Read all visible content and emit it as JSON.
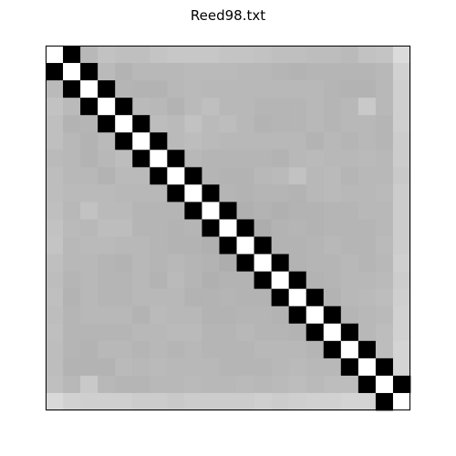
{
  "chart_data": {
    "type": "heatmap",
    "title": "Reed98.txt",
    "rows": 21,
    "cols": 21,
    "colormap": "gray",
    "axes_ticks": false,
    "colors": {
      "border": "#000000",
      "background": "#ffffff"
    },
    "values": [
      [
        1.0,
        0.0,
        0.72,
        0.76,
        0.75,
        0.75,
        0.77,
        0.78,
        0.78,
        0.78,
        0.77,
        0.77,
        0.76,
        0.75,
        0.75,
        0.74,
        0.74,
        0.73,
        0.76,
        0.77,
        0.86
      ],
      [
        0.0,
        1.0,
        0.0,
        0.73,
        0.7,
        0.72,
        0.72,
        0.72,
        0.73,
        0.73,
        0.73,
        0.72,
        0.72,
        0.71,
        0.7,
        0.71,
        0.71,
        0.71,
        0.71,
        0.72,
        0.82
      ],
      [
        0.73,
        0.0,
        1.0,
        0.0,
        0.71,
        0.7,
        0.7,
        0.72,
        0.73,
        0.72,
        0.72,
        0.72,
        0.72,
        0.72,
        0.72,
        0.72,
        0.71,
        0.7,
        0.7,
        0.72,
        0.81
      ],
      [
        0.76,
        0.73,
        0.0,
        1.0,
        0.0,
        0.73,
        0.72,
        0.7,
        0.73,
        0.75,
        0.72,
        0.72,
        0.71,
        0.71,
        0.71,
        0.72,
        0.71,
        0.72,
        0.79,
        0.72,
        0.81
      ],
      [
        0.75,
        0.7,
        0.71,
        0.0,
        1.0,
        0.0,
        0.74,
        0.73,
        0.76,
        0.73,
        0.74,
        0.72,
        0.7,
        0.71,
        0.71,
        0.72,
        0.71,
        0.72,
        0.72,
        0.71,
        0.81
      ],
      [
        0.75,
        0.72,
        0.7,
        0.73,
        0.0,
        1.0,
        0.0,
        0.73,
        0.74,
        0.73,
        0.72,
        0.72,
        0.72,
        0.72,
        0.72,
        0.7,
        0.72,
        0.71,
        0.72,
        0.71,
        0.8
      ],
      [
        0.73,
        0.72,
        0.7,
        0.72,
        0.74,
        0.0,
        1.0,
        0.0,
        0.72,
        0.71,
        0.71,
        0.71,
        0.71,
        0.7,
        0.72,
        0.73,
        0.72,
        0.72,
        0.73,
        0.72,
        0.8
      ],
      [
        0.74,
        0.72,
        0.72,
        0.7,
        0.73,
        0.73,
        0.0,
        1.0,
        0.0,
        0.71,
        0.7,
        0.7,
        0.72,
        0.73,
        0.76,
        0.72,
        0.73,
        0.71,
        0.72,
        0.72,
        0.79
      ],
      [
        0.74,
        0.73,
        0.73,
        0.73,
        0.72,
        0.72,
        0.72,
        0.0,
        1.0,
        0.0,
        0.71,
        0.7,
        0.71,
        0.71,
        0.7,
        0.72,
        0.73,
        0.72,
        0.72,
        0.73,
        0.8
      ],
      [
        0.75,
        0.72,
        0.76,
        0.73,
        0.73,
        0.71,
        0.71,
        0.71,
        0.0,
        1.0,
        0.0,
        0.69,
        0.7,
        0.69,
        0.7,
        0.7,
        0.71,
        0.71,
        0.72,
        0.72,
        0.8
      ],
      [
        0.76,
        0.73,
        0.72,
        0.74,
        0.74,
        0.71,
        0.71,
        0.7,
        0.71,
        0.0,
        1.0,
        0.0,
        0.68,
        0.7,
        0.71,
        0.7,
        0.71,
        0.71,
        0.71,
        0.72,
        0.8
      ],
      [
        0.77,
        0.72,
        0.73,
        0.73,
        0.72,
        0.72,
        0.71,
        0.7,
        0.7,
        0.69,
        0.0,
        1.0,
        0.0,
        0.7,
        0.7,
        0.71,
        0.72,
        0.71,
        0.71,
        0.73,
        0.8
      ],
      [
        0.75,
        0.72,
        0.72,
        0.71,
        0.7,
        0.72,
        0.71,
        0.72,
        0.71,
        0.7,
        0.68,
        0.0,
        1.0,
        0.0,
        0.7,
        0.71,
        0.71,
        0.72,
        0.71,
        0.72,
        0.81
      ],
      [
        0.74,
        0.71,
        0.72,
        0.71,
        0.71,
        0.72,
        0.7,
        0.73,
        0.71,
        0.69,
        0.7,
        0.7,
        0.0,
        1.0,
        0.0,
        0.7,
        0.71,
        0.72,
        0.72,
        0.73,
        0.8
      ],
      [
        0.75,
        0.7,
        0.72,
        0.71,
        0.71,
        0.72,
        0.72,
        0.72,
        0.7,
        0.7,
        0.71,
        0.7,
        0.7,
        0.0,
        1.0,
        0.0,
        0.7,
        0.72,
        0.73,
        0.74,
        0.81
      ],
      [
        0.74,
        0.71,
        0.72,
        0.72,
        0.72,
        0.7,
        0.73,
        0.72,
        0.72,
        0.7,
        0.7,
        0.71,
        0.71,
        0.7,
        0.0,
        1.0,
        0.0,
        0.71,
        0.72,
        0.73,
        0.82
      ],
      [
        0.75,
        0.71,
        0.71,
        0.71,
        0.71,
        0.72,
        0.72,
        0.73,
        0.73,
        0.71,
        0.71,
        0.72,
        0.71,
        0.71,
        0.7,
        0.0,
        1.0,
        0.0,
        0.72,
        0.74,
        0.82
      ],
      [
        0.74,
        0.71,
        0.7,
        0.72,
        0.72,
        0.71,
        0.72,
        0.71,
        0.72,
        0.71,
        0.71,
        0.71,
        0.72,
        0.72,
        0.72,
        0.71,
        0.0,
        1.0,
        0.0,
        0.74,
        0.83
      ],
      [
        0.74,
        0.7,
        0.7,
        0.7,
        0.73,
        0.72,
        0.73,
        0.72,
        0.72,
        0.72,
        0.71,
        0.71,
        0.71,
        0.72,
        0.73,
        0.72,
        0.72,
        0.0,
        1.0,
        0.0,
        0.83
      ],
      [
        0.75,
        0.72,
        0.79,
        0.72,
        0.71,
        0.71,
        0.72,
        0.72,
        0.73,
        0.72,
        0.72,
        0.73,
        0.72,
        0.73,
        0.74,
        0.73,
        0.74,
        0.74,
        0.0,
        1.0,
        0.0
      ],
      [
        0.85,
        0.82,
        0.81,
        0.81,
        0.81,
        0.8,
        0.8,
        0.79,
        0.8,
        0.8,
        0.8,
        0.8,
        0.81,
        0.8,
        0.81,
        0.82,
        0.82,
        0.83,
        0.83,
        0.0,
        1.0
      ]
    ]
  }
}
